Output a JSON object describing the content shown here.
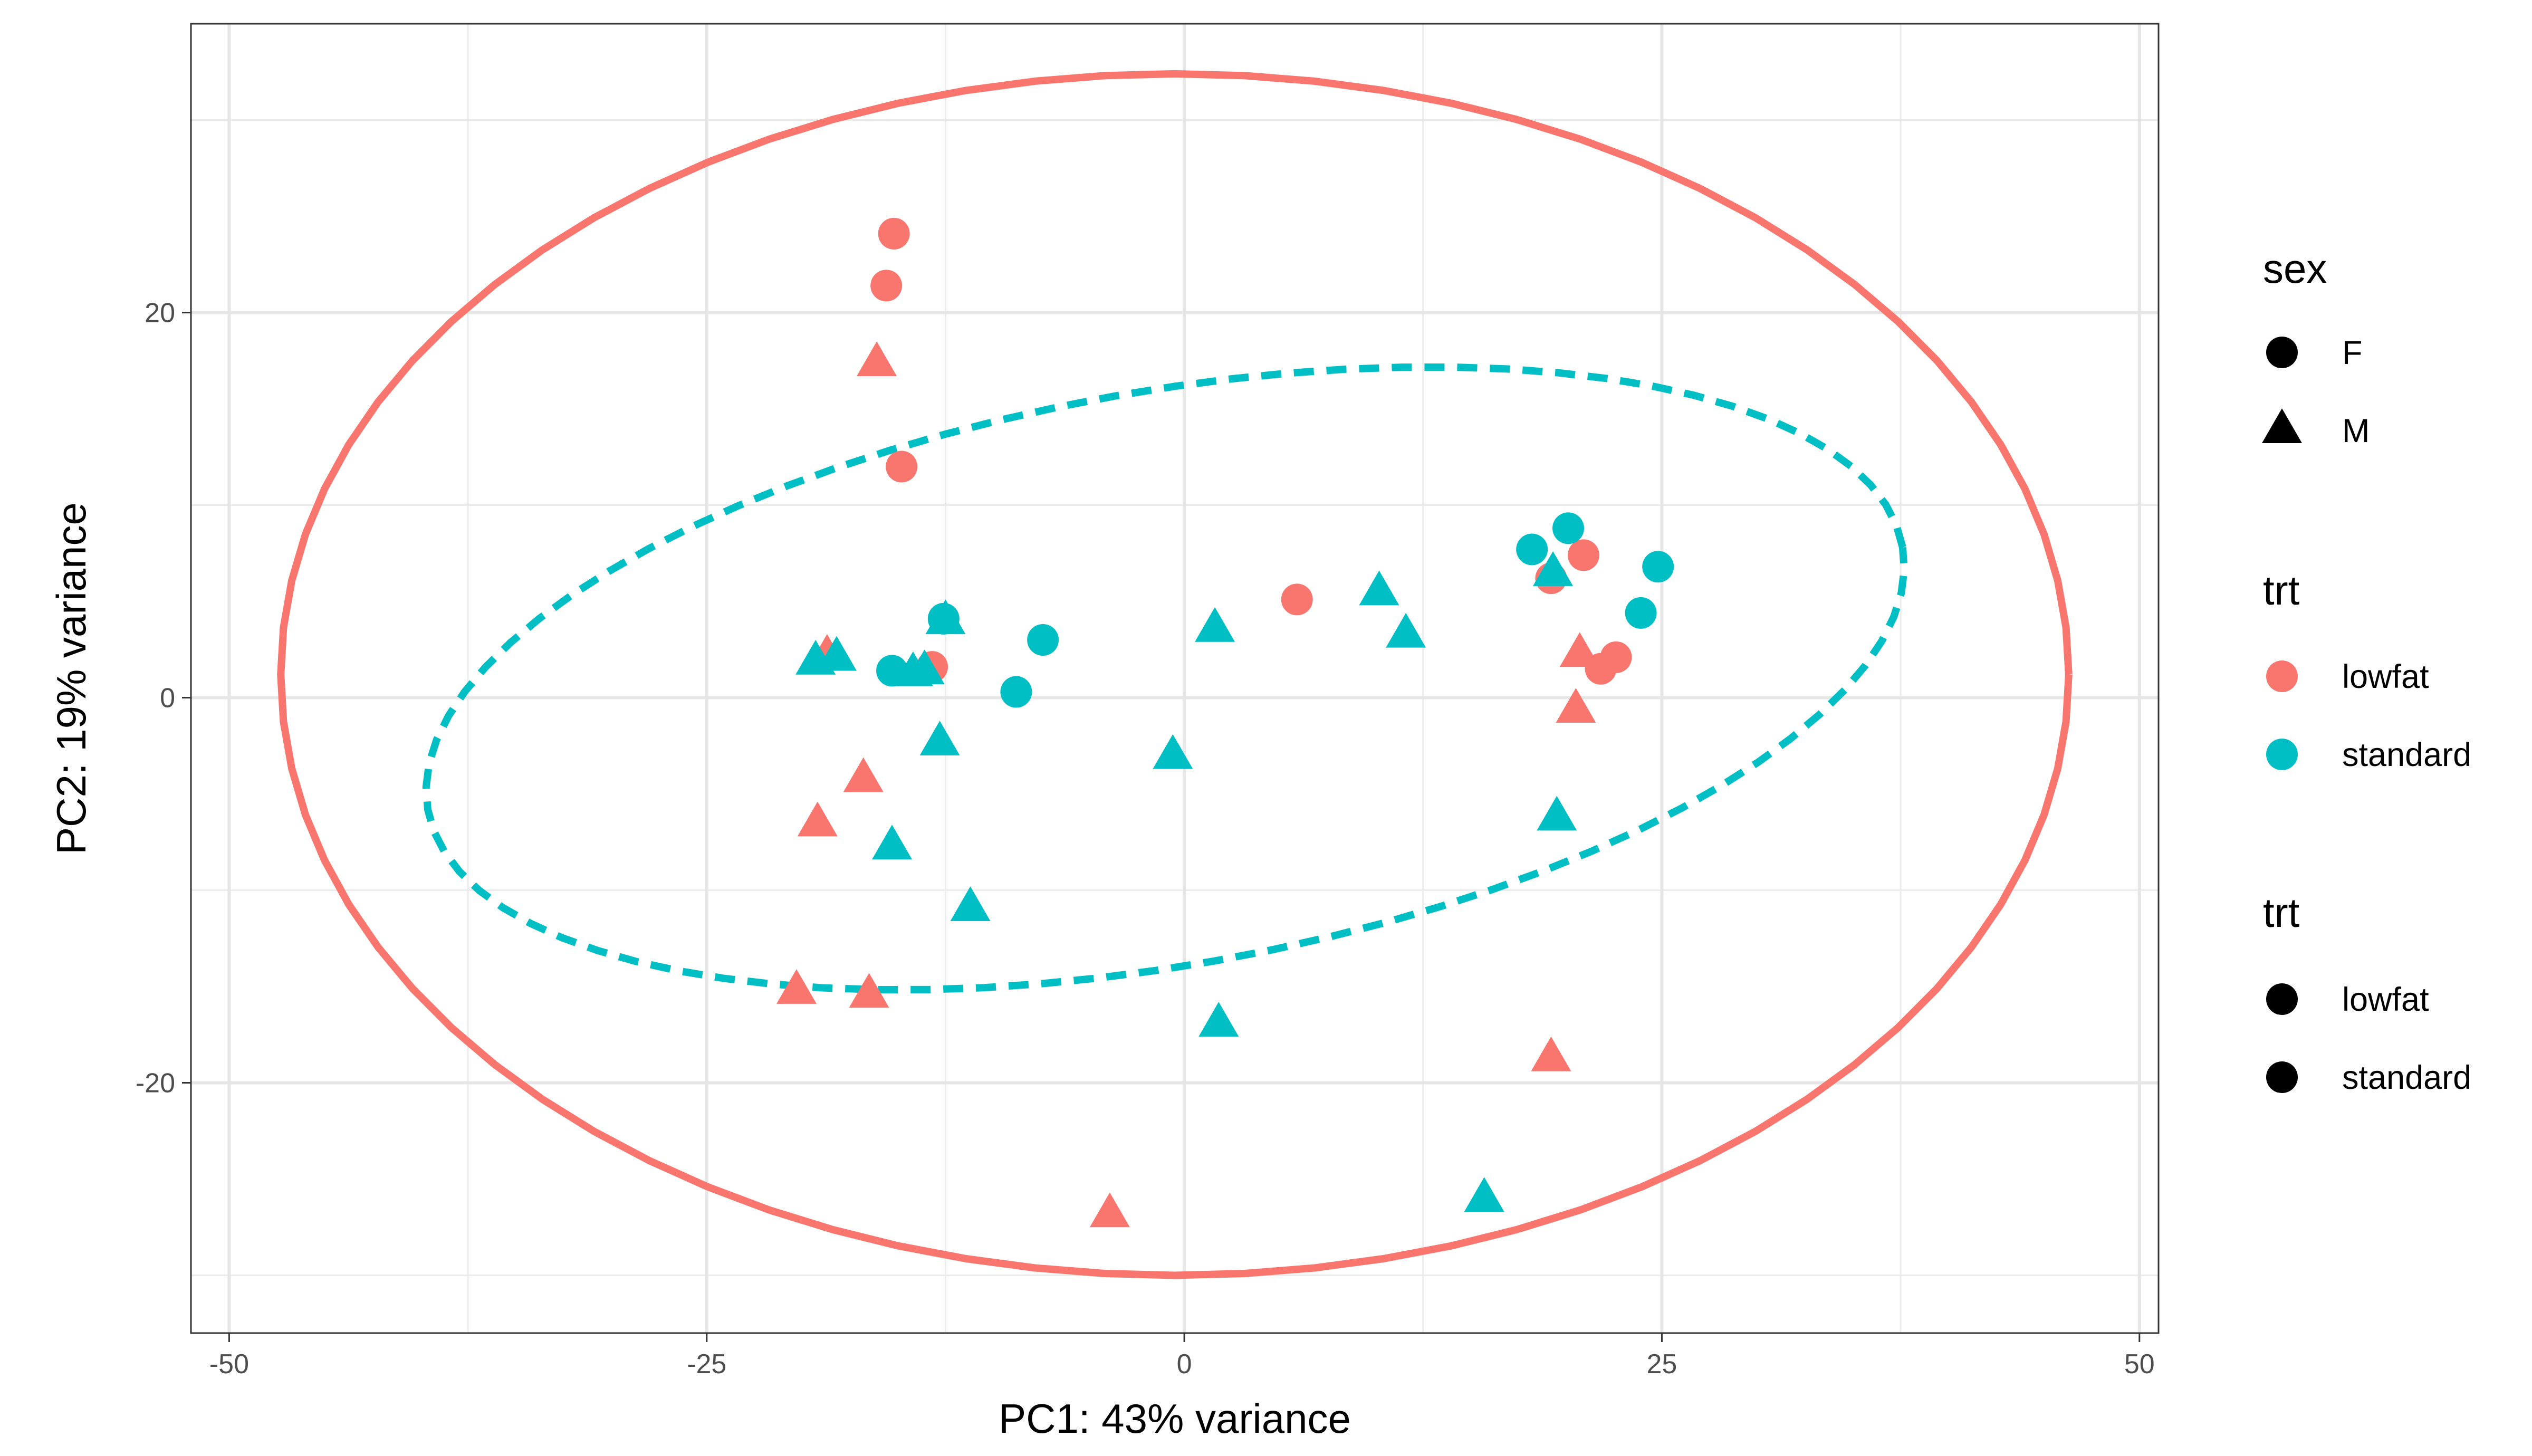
{
  "chart_data": {
    "type": "scatter",
    "title": "",
    "xlabel": "PC1: 43% variance",
    "ylabel": "PC2: 19% variance",
    "xlim": [
      -52,
      51
    ],
    "ylim": [
      -33,
      35
    ],
    "x_ticks": [
      -50,
      -25,
      0,
      25,
      50
    ],
    "x_tick_labels": [
      "-50",
      "-25",
      "0",
      "25",
      "50"
    ],
    "y_ticks": [
      -20,
      0,
      20
    ],
    "y_tick_labels": [
      "-20",
      "0",
      "20"
    ],
    "grid": true,
    "colors": {
      "lowfat": "#F8766D",
      "standard": "#00BFC4"
    },
    "legend_position": "right",
    "legends": [
      {
        "title": "sex",
        "items": [
          {
            "label": "F",
            "shape": "circle"
          },
          {
            "label": "M",
            "shape": "triangle"
          }
        ]
      },
      {
        "title": "trt",
        "items": [
          {
            "label": "lowfat",
            "shape": "circle",
            "color": "#F8766D"
          },
          {
            "label": "standard",
            "shape": "circle",
            "color": "#00BFC4"
          }
        ]
      },
      {
        "title": "trt",
        "items": [
          {
            "label": "lowfat",
            "shape": "circle"
          },
          {
            "label": "standard",
            "shape": "circle"
          }
        ]
      }
    ],
    "ellipses": [
      {
        "group": "lowfat",
        "style": "solid",
        "center": [
          -0.5,
          1.2
        ],
        "rx": 46.8,
        "ry": 31.2,
        "angle": 0
      },
      {
        "group": "standard",
        "style": "dashed",
        "center": [
          -1.0,
          1.0
        ],
        "rx": 39.2,
        "ry": 14.9,
        "angle": 10
      }
    ],
    "series": [
      {
        "name": "lowfat",
        "points": [
          {
            "x": -15.2,
            "y": 24.1,
            "sex": "F"
          },
          {
            "x": -15.6,
            "y": 21.4,
            "sex": "F"
          },
          {
            "x": -14.8,
            "y": 12.0,
            "sex": "F"
          },
          {
            "x": -13.2,
            "y": 1.6,
            "sex": "F"
          },
          {
            "x": 5.9,
            "y": 5.1,
            "sex": "F"
          },
          {
            "x": 19.2,
            "y": 6.2,
            "sex": "F"
          },
          {
            "x": 20.9,
            "y": 7.4,
            "sex": "F"
          },
          {
            "x": 21.8,
            "y": 1.5,
            "sex": "F"
          },
          {
            "x": 22.6,
            "y": 2.1,
            "sex": "F"
          },
          {
            "x": -16.1,
            "y": 17.3,
            "sex": "M"
          },
          {
            "x": -18.7,
            "y": 2.1,
            "sex": "M"
          },
          {
            "x": -16.8,
            "y": -4.3,
            "sex": "M"
          },
          {
            "x": -19.2,
            "y": -6.6,
            "sex": "M"
          },
          {
            "x": -20.3,
            "y": -15.3,
            "sex": "M"
          },
          {
            "x": -16.5,
            "y": -15.5,
            "sex": "M"
          },
          {
            "x": -3.9,
            "y": -26.9,
            "sex": "M"
          },
          {
            "x": 19.2,
            "y": -18.8,
            "sex": "M"
          },
          {
            "x": 20.7,
            "y": 2.2,
            "sex": "M"
          },
          {
            "x": 20.5,
            "y": -0.7,
            "sex": "M"
          }
        ]
      },
      {
        "name": "standard",
        "points": [
          {
            "x": -15.3,
            "y": 1.4,
            "sex": "F"
          },
          {
            "x": -12.6,
            "y": 4.1,
            "sex": "F"
          },
          {
            "x": -7.4,
            "y": 3.0,
            "sex": "F"
          },
          {
            "x": -8.8,
            "y": 0.3,
            "sex": "F"
          },
          {
            "x": 18.2,
            "y": 7.7,
            "sex": "F"
          },
          {
            "x": 20.1,
            "y": 8.8,
            "sex": "F"
          },
          {
            "x": 23.9,
            "y": 4.4,
            "sex": "F"
          },
          {
            "x": 24.8,
            "y": 6.8,
            "sex": "F"
          },
          {
            "x": -19.3,
            "y": 1.8,
            "sex": "M"
          },
          {
            "x": -18.2,
            "y": 2.0,
            "sex": "M"
          },
          {
            "x": -14.2,
            "y": 1.2,
            "sex": "M"
          },
          {
            "x": -13.6,
            "y": 1.3,
            "sex": "M"
          },
          {
            "x": -12.5,
            "y": 3.9,
            "sex": "M"
          },
          {
            "x": -12.8,
            "y": -2.4,
            "sex": "M"
          },
          {
            "x": -15.3,
            "y": -7.8,
            "sex": "M"
          },
          {
            "x": -11.2,
            "y": -11.0,
            "sex": "M"
          },
          {
            "x": -0.6,
            "y": -3.1,
            "sex": "M"
          },
          {
            "x": 1.6,
            "y": 3.5,
            "sex": "M"
          },
          {
            "x": 10.2,
            "y": 5.4,
            "sex": "M"
          },
          {
            "x": 11.6,
            "y": 3.2,
            "sex": "M"
          },
          {
            "x": 19.3,
            "y": 6.4,
            "sex": "M"
          },
          {
            "x": 19.5,
            "y": -6.3,
            "sex": "M"
          },
          {
            "x": 1.8,
            "y": -17.0,
            "sex": "M"
          },
          {
            "x": 15.7,
            "y": -26.1,
            "sex": "M"
          }
        ]
      }
    ]
  }
}
